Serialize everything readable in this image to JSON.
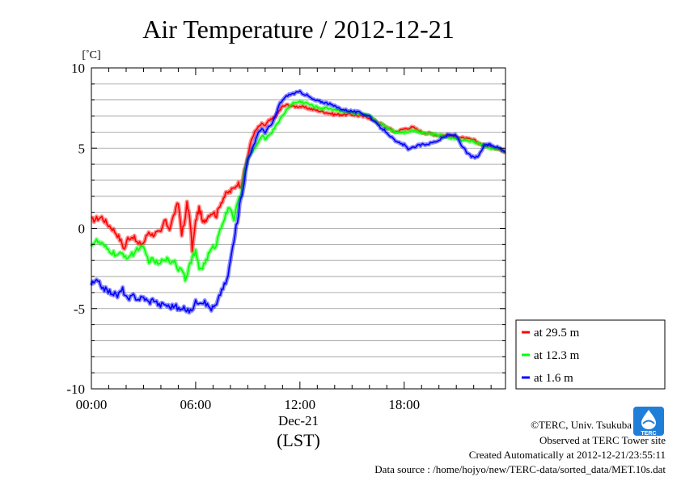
{
  "chart_data": {
    "type": "line",
    "title": "Air Temperature / 2012-12-21",
    "ylabel": "[˚C]",
    "ylim": [
      -10,
      10
    ],
    "yticks": [
      10,
      5,
      0,
      -5,
      -10
    ],
    "ytick_labels": [
      "10",
      "5",
      "0",
      "-5",
      "-10"
    ],
    "xlim": [
      0,
      23.83
    ],
    "xticks": [
      0,
      6,
      12,
      18
    ],
    "xtick_labels": [
      "00:00",
      "06:00",
      "12:00",
      "18:00"
    ],
    "date_label": "Dec-21",
    "xlabel": "(LST)",
    "grid": true,
    "legend_position": "bottom-right, outside plot",
    "series": [
      {
        "name": "at 29.5 m",
        "color": "#ff0000",
        "x": [
          0,
          0.3,
          0.6,
          0.9,
          1.2,
          1.5,
          1.7,
          1.9,
          2.1,
          2.4,
          2.7,
          3.0,
          3.3,
          3.5,
          3.7,
          4.0,
          4.2,
          4.5,
          4.8,
          5.0,
          5.2,
          5.4,
          5.5,
          5.6,
          5.7,
          5.8,
          5.9,
          6.0,
          6.1,
          6.2,
          6.3,
          6.4,
          6.5,
          6.6,
          6.8,
          7.0,
          7.2,
          7.4,
          7.6,
          7.8,
          8.0,
          8.2,
          8.4,
          8.6,
          8.8,
          9.0,
          9.2,
          9.4,
          9.6,
          9.8,
          10.0,
          10.2,
          10.4,
          10.6,
          10.8,
          11.0,
          11.3,
          11.6,
          12.0,
          12.4,
          12.8,
          13.2,
          13.6,
          14.0,
          14.5,
          15.0,
          15.5,
          16.0,
          16.5,
          17.0,
          17.5,
          18.0,
          18.5,
          19.0,
          19.5,
          20.0,
          20.5,
          21.0,
          21.5,
          22.0,
          22.5,
          23.0,
          23.5,
          23.83
        ],
        "values": [
          0.5,
          0.6,
          0.7,
          0.3,
          0.0,
          -0.4,
          -0.8,
          -1.3,
          -0.6,
          -0.5,
          -1.0,
          -0.9,
          -0.2,
          -0.4,
          -0.3,
          -0.3,
          0.5,
          0.0,
          1.0,
          1.6,
          -0.3,
          0.5,
          1.7,
          1.0,
          0.2,
          -1.3,
          -0.5,
          0.4,
          0.9,
          1.2,
          0.9,
          0.3,
          0.5,
          0.6,
          0.9,
          1.0,
          0.8,
          1.5,
          1.9,
          2.2,
          2.3,
          2.5,
          2.8,
          2.7,
          3.5,
          4.5,
          5.5,
          6.0,
          6.3,
          6.5,
          6.4,
          6.7,
          6.8,
          7.0,
          7.3,
          7.6,
          7.7,
          7.6,
          7.6,
          7.5,
          7.4,
          7.3,
          7.2,
          7.1,
          7.1,
          7.1,
          7.0,
          6.9,
          6.6,
          6.3,
          6.0,
          6.2,
          6.3,
          6.0,
          5.9,
          5.8,
          5.8,
          5.7,
          5.6,
          5.5,
          5.2,
          5.1,
          4.9,
          4.8
        ]
      },
      {
        "name": "at 12.3 m",
        "color": "#00ff00",
        "x": [
          0,
          0.3,
          0.6,
          0.9,
          1.2,
          1.5,
          1.8,
          2.1,
          2.4,
          2.7,
          3.0,
          3.3,
          3.6,
          3.9,
          4.2,
          4.5,
          4.8,
          5.0,
          5.2,
          5.4,
          5.6,
          5.8,
          6.0,
          6.2,
          6.4,
          6.6,
          6.8,
          7.0,
          7.2,
          7.4,
          7.6,
          7.8,
          8.0,
          8.2,
          8.4,
          8.6,
          8.8,
          9.0,
          9.2,
          9.4,
          9.6,
          9.8,
          10.0,
          10.2,
          10.4,
          10.6,
          10.8,
          11.0,
          11.3,
          11.6,
          12.0,
          12.4,
          12.8,
          13.2,
          13.6,
          14.0,
          14.5,
          15.0,
          15.5,
          16.0,
          16.5,
          17.0,
          17.5,
          18.0,
          18.5,
          19.0,
          19.5,
          20.0,
          20.5,
          21.0,
          21.5,
          22.0,
          22.5,
          23.0,
          23.5,
          23.83
        ],
        "values": [
          -1.0,
          -0.8,
          -1.0,
          -1.3,
          -1.5,
          -1.7,
          -1.6,
          -1.8,
          -1.6,
          -1.2,
          -1.3,
          -2.0,
          -2.0,
          -2.3,
          -1.8,
          -2.1,
          -2.0,
          -2.6,
          -2.4,
          -3.1,
          -2.5,
          -1.8,
          -1.5,
          -2.5,
          -2.4,
          -2.0,
          -1.5,
          -1.2,
          -1.0,
          0.0,
          0.5,
          1.0,
          1.3,
          0.6,
          1.5,
          2.0,
          3.5,
          4.3,
          4.7,
          5.0,
          5.3,
          5.8,
          5.6,
          5.8,
          6.0,
          6.4,
          6.7,
          7.0,
          7.5,
          7.8,
          7.9,
          7.8,
          7.6,
          7.5,
          7.5,
          7.4,
          7.3,
          7.2,
          7.1,
          7.0,
          6.6,
          6.3,
          6.0,
          6.0,
          6.1,
          6.0,
          5.9,
          5.8,
          5.7,
          5.6,
          5.5,
          5.4,
          5.2,
          5.0,
          4.9,
          4.8
        ]
      },
      {
        "name": "at 1.6 m",
        "color": "#0000ff",
        "x": [
          0,
          0.3,
          0.6,
          0.9,
          1.2,
          1.5,
          1.8,
          2.1,
          2.4,
          2.7,
          3.0,
          3.3,
          3.6,
          3.9,
          4.2,
          4.5,
          4.8,
          5.1,
          5.4,
          5.7,
          6.0,
          6.3,
          6.6,
          6.9,
          7.2,
          7.5,
          7.8,
          8.0,
          8.2,
          8.4,
          8.6,
          8.8,
          9.0,
          9.2,
          9.4,
          9.6,
          9.8,
          10.0,
          10.2,
          10.4,
          10.6,
          10.8,
          11.0,
          11.3,
          11.6,
          12.0,
          12.4,
          12.8,
          13.2,
          13.6,
          14.0,
          14.5,
          15.0,
          15.5,
          16.0,
          16.5,
          17.0,
          17.5,
          18.0,
          18.3,
          18.6,
          19.0,
          19.5,
          20.0,
          20.5,
          21.0,
          21.3,
          21.6,
          22.0,
          22.3,
          22.6,
          23.0,
          23.5,
          23.83
        ],
        "values": [
          -3.5,
          -3.3,
          -3.6,
          -3.9,
          -4.0,
          -4.2,
          -3.8,
          -4.5,
          -4.2,
          -4.4,
          -4.3,
          -4.6,
          -4.4,
          -4.8,
          -4.7,
          -4.9,
          -4.8,
          -5.1,
          -5.0,
          -5.2,
          -4.6,
          -4.5,
          -4.7,
          -5.0,
          -4.8,
          -3.8,
          -3.3,
          -2.0,
          -0.8,
          0.5,
          1.8,
          3.0,
          4.3,
          4.8,
          5.3,
          6.0,
          6.2,
          6.0,
          6.3,
          6.5,
          7.0,
          7.7,
          8.0,
          8.3,
          8.4,
          8.5,
          8.3,
          8.0,
          7.9,
          7.8,
          7.6,
          7.4,
          7.3,
          7.2,
          7.0,
          6.4,
          6.0,
          5.4,
          5.2,
          4.9,
          5.1,
          5.2,
          5.3,
          5.5,
          5.8,
          5.8,
          5.2,
          4.7,
          4.4,
          4.5,
          5.2,
          5.2,
          5.0,
          4.8
        ]
      }
    ]
  },
  "credits": {
    "copyright": "©TERC, Univ. Tsukuba",
    "observed": "Observed at TERC Tower site",
    "created": "Created Automatically at 2012-12-21/23:55:11",
    "source": "Data source : /home/hojyo/new/TERC-data/sorted_data/MET.10s.dat"
  },
  "logo": {
    "text": "TERC",
    "color": "#1f7fd8"
  }
}
